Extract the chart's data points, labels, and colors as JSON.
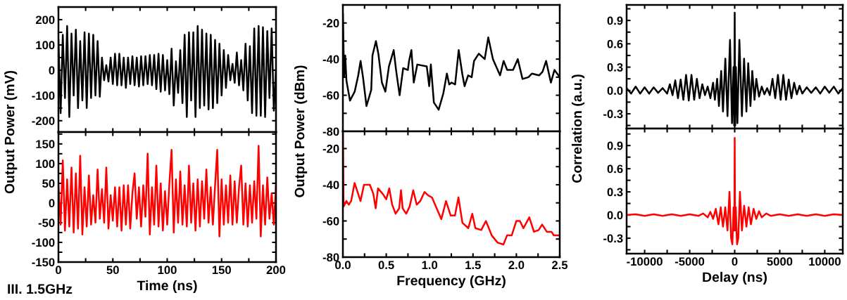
{
  "chart_data": [
    {
      "type": "line",
      "ylabel": "Output Power (mV)",
      "annotations": [
        "III. 1.5GHz"
      ],
      "tick_labels": "y",
      "xlim": [
        0,
        200
      ],
      "ylim": [
        -245,
        250
      ],
      "xticks": [
        0,
        {
          "value": 25,
          "label": null
        },
        50,
        {
          "value": 75,
          "label": null
        },
        100,
        {
          "value": 125,
          "label": null
        },
        150,
        {
          "value": 175,
          "label": null
        },
        200
      ],
      "yticks": [
        -200,
        {
          "value": -150,
          "label": null
        },
        -100,
        {
          "value": -50,
          "label": null
        },
        0,
        {
          "value": 50,
          "label": null
        },
        100,
        {
          "value": 150,
          "label": null
        },
        200
      ],
      "grid": false,
      "legend": false,
      "marker": "none",
      "line_style": "solid",
      "series": [
        {
          "color": "#000000",
          "x": [
            0,
            2,
            4,
            6,
            8,
            10,
            12,
            14,
            16,
            18,
            20,
            22,
            24,
            26,
            28,
            30,
            32,
            34,
            36,
            38,
            40,
            42,
            44,
            46,
            48,
            50,
            52,
            54,
            56,
            58,
            60,
            62,
            64,
            66,
            68,
            70,
            72,
            74,
            76,
            78,
            80,
            82,
            84,
            86,
            88,
            90,
            92,
            94,
            96,
            98,
            100,
            102,
            104,
            106,
            108,
            110,
            112,
            114,
            116,
            118,
            120,
            122,
            124,
            126,
            128,
            130,
            132,
            134,
            136,
            138,
            140,
            142,
            144,
            146,
            148,
            150,
            152,
            154,
            156,
            158,
            160,
            162,
            164,
            166,
            168,
            170,
            172,
            174,
            176,
            178,
            180,
            182,
            184,
            186,
            188,
            190,
            192,
            194,
            196,
            198,
            200
          ],
          "values": [
            120,
            -170,
            140,
            -110,
            175,
            -185,
            145,
            -100,
            160,
            -150,
            115,
            -120,
            150,
            -150,
            145,
            -110,
            140,
            -100,
            115,
            -105,
            50,
            -40,
            20,
            -45,
            50,
            -55,
            65,
            -60,
            65,
            -60,
            50,
            -70,
            50,
            -55,
            55,
            -60,
            50,
            -65,
            55,
            -60,
            55,
            -55,
            60,
            -60,
            60,
            -75,
            65,
            -85,
            60,
            -80,
            40,
            -95,
            85,
            -140,
            35,
            -90,
            80,
            -130,
            140,
            -185,
            150,
            -120,
            150,
            -185,
            175,
            -150,
            160,
            -140,
            145,
            -155,
            140,
            -150,
            120,
            -130,
            105,
            -100,
            80,
            -70,
            60,
            -40,
            25,
            -50,
            70,
            -60,
            40,
            -80,
            105,
            -120,
            95,
            -170,
            165,
            -180,
            175,
            -180,
            170,
            -185,
            155,
            -110,
            165,
            -160,
            0
          ]
        }
      ]
    },
    {
      "type": "line",
      "xlabel": "Time (ns)",
      "xlim": [
        0,
        200
      ],
      "ylim": [
        -150,
        180
      ],
      "xticks": [
        0,
        {
          "value": 25,
          "label": null
        },
        50,
        {
          "value": 75,
          "label": null
        },
        100,
        {
          "value": 125,
          "label": null
        },
        150,
        {
          "value": 175,
          "label": null
        },
        200
      ],
      "yticks": [
        -150,
        {
          "value": -125,
          "label": null
        },
        -100,
        {
          "value": -75,
          "label": null
        },
        -50,
        {
          "value": -25,
          "label": null
        },
        0,
        {
          "value": 25,
          "label": null
        },
        50,
        {
          "value": 75,
          "label": null
        },
        100,
        {
          "value": 125,
          "label": null
        },
        150,
        {
          "value": 175,
          "label": null
        }
      ],
      "grid": false,
      "legend": false,
      "marker": "none",
      "line_style": "solid",
      "series": [
        {
          "color": "#ff0000",
          "x": [
            0,
            2,
            4,
            6,
            8,
            10,
            12,
            14,
            16,
            18,
            20,
            22,
            24,
            26,
            28,
            30,
            32,
            34,
            36,
            38,
            40,
            42,
            44,
            46,
            48,
            50,
            52,
            54,
            56,
            58,
            60,
            62,
            64,
            66,
            68,
            70,
            72,
            74,
            76,
            78,
            80,
            82,
            84,
            86,
            88,
            90,
            92,
            94,
            96,
            98,
            100,
            102,
            104,
            106,
            108,
            110,
            112,
            114,
            116,
            118,
            120,
            122,
            124,
            126,
            128,
            130,
            132,
            134,
            136,
            138,
            140,
            142,
            144,
            146,
            148,
            150,
            152,
            154,
            156,
            158,
            160,
            162,
            164,
            166,
            168,
            170,
            172,
            174,
            176,
            178,
            180,
            182,
            184,
            186,
            188,
            190,
            192,
            194,
            196,
            198,
            200
          ],
          "values": [
            45,
            -55,
            108,
            -70,
            60,
            -60,
            90,
            -75,
            75,
            -65,
            120,
            -80,
            40,
            -60,
            70,
            -55,
            20,
            -50,
            85,
            -40,
            35,
            -50,
            90,
            -65,
            20,
            -45,
            40,
            -60,
            40,
            -70,
            45,
            -55,
            45,
            -65,
            25,
            75,
            -40,
            40,
            -60,
            45,
            -35,
            125,
            -80,
            40,
            -55,
            95,
            -60,
            50,
            -70,
            30,
            -55,
            50,
            135,
            -75,
            60,
            -50,
            80,
            -55,
            45,
            -60,
            95,
            -50,
            50,
            -70,
            60,
            -60,
            55,
            -40,
            85,
            -50,
            40,
            -55,
            45,
            135,
            -85,
            60,
            -55,
            45,
            -50,
            70,
            -55,
            55,
            -50,
            40,
            95,
            -55,
            50,
            -60,
            45,
            -50,
            55,
            -40,
            145,
            -85,
            45,
            -55,
            65,
            -40,
            25,
            -55,
            45
          ]
        }
      ]
    },
    {
      "type": "line",
      "ylabel": "Output Power (dBm)",
      "tick_labels": "y",
      "xlim": [
        0,
        2.5
      ],
      "ylim": [
        -80,
        -10
      ],
      "xticks": [
        0,
        {
          "value": 0.25,
          "label": null
        },
        0.5,
        {
          "value": 0.75,
          "label": null
        },
        1,
        {
          "value": 1.25,
          "label": null
        },
        1.5,
        {
          "value": 1.75,
          "label": null
        },
        2,
        {
          "value": 2.25,
          "label": null
        },
        2.5
      ],
      "yticks": [
        -80,
        {
          "value": -70,
          "label": null
        },
        -60,
        {
          "value": -50,
          "label": null
        },
        -40,
        {
          "value": -30,
          "label": null
        },
        -20
      ],
      "grid": false,
      "legend": false,
      "marker": "none",
      "line_style": "solid",
      "series": [
        {
          "color": "#000000",
          "x": [
            0,
            0.014,
            0.027,
            0.041,
            0.082,
            0.136,
            0.177,
            0.204,
            0.232,
            0.272,
            0.327,
            0.341,
            0.381,
            0.409,
            0.45,
            0.49,
            0.531,
            0.586,
            0.613,
            0.654,
            0.695,
            0.749,
            0.763,
            0.79,
            0.817,
            0.858,
            0.967,
            0.995,
            1.014,
            1.049,
            1.104,
            1.158,
            1.199,
            1.226,
            1.253,
            1.294,
            1.335,
            1.376,
            1.403,
            1.444,
            1.485,
            1.512,
            1.567,
            1.635,
            1.676,
            1.73,
            1.812,
            1.853,
            1.894,
            1.962,
            2.016,
            2.071,
            2.139,
            2.18,
            2.262,
            2.302,
            2.343,
            2.398,
            2.439,
            2.5
          ],
          "values": [
            -15,
            -50,
            -38,
            -52,
            -63,
            -58,
            -49,
            -41,
            -50,
            -66,
            -57,
            -38,
            -30,
            -37,
            -53,
            -58,
            -44,
            -35,
            -46,
            -60,
            -45,
            -46,
            -41,
            -35,
            -53,
            -43,
            -44,
            -55,
            -43,
            -64,
            -68,
            -59,
            -48,
            -54,
            -53,
            -54,
            -35,
            -48,
            -55,
            -49,
            -50,
            -41,
            -37,
            -40,
            -28,
            -40,
            -49,
            -41,
            -46,
            -46,
            -40,
            -51,
            -50,
            -48,
            -49,
            -47,
            -41,
            -53,
            -46,
            -50
          ]
        }
      ]
    },
    {
      "type": "line",
      "xlabel": "Frequency (GHz)",
      "xlim": [
        0,
        2.5
      ],
      "ylim": [
        -80,
        -10.5
      ],
      "xticks": [
        {
          "value": 0,
          "label": "0.0"
        },
        {
          "value": 0.25,
          "label": null
        },
        0.5,
        {
          "value": 0.75,
          "label": null
        },
        {
          "value": 1,
          "label": "1.0"
        },
        {
          "value": 1.25,
          "label": null
        },
        1.5,
        {
          "value": 1.75,
          "label": null
        },
        {
          "value": 2,
          "label": "2.0"
        },
        {
          "value": 2.25,
          "label": null
        },
        2.5
      ],
      "yticks": [
        -80,
        {
          "value": -70,
          "label": null
        },
        -60,
        {
          "value": -50,
          "label": null
        },
        -40,
        {
          "value": -30,
          "label": null
        },
        -20
      ],
      "grid": false,
      "legend": false,
      "marker": "none",
      "line_style": "solid",
      "series": [
        {
          "color": "#ff0000",
          "x": [
            0,
            0.008,
            0.041,
            0.068,
            0.095,
            0.135,
            0.176,
            0.203,
            0.243,
            0.284,
            0.311,
            0.351,
            0.378,
            0.405,
            0.459,
            0.5,
            0.535,
            0.568,
            0.608,
            0.649,
            0.67,
            0.689,
            0.73,
            0.77,
            0.811,
            0.851,
            0.892,
            0.941,
            0.986,
            1.027,
            1.081,
            1.135,
            1.189,
            1.243,
            1.292,
            1.332,
            1.378,
            1.446,
            1.492,
            1.527,
            1.595,
            1.649,
            1.716,
            1.784,
            1.851,
            1.892,
            1.946,
            2.0,
            2.041,
            2.081,
            2.149,
            2.203,
            2.257,
            2.297,
            2.351,
            2.405,
            2.432,
            2.486
          ],
          "values": [
            -11,
            -52,
            -49,
            -51,
            -49,
            -39,
            -45,
            -49,
            -40,
            -40,
            -40,
            -45,
            -53,
            -42,
            -45,
            -48,
            -42,
            -51,
            -56,
            -53,
            -43,
            -53,
            -56,
            -52,
            -43,
            -51,
            -49,
            -44,
            -46,
            -47,
            -53,
            -59,
            -49,
            -57,
            -57,
            -47,
            -61,
            -64,
            -56,
            -64,
            -65,
            -60,
            -68,
            -72,
            -73,
            -68,
            -68,
            -60,
            -60,
            -64,
            -58,
            -66,
            -65,
            -62,
            -66,
            -66,
            -68,
            -68
          ]
        }
      ]
    },
    {
      "type": "line",
      "ylabel": "Correlation (a.u.)",
      "tick_labels": "y",
      "xlim": [
        -12000,
        12000
      ],
      "ylim": [
        -0.49,
        1.1
      ],
      "xticks": [
        -10000,
        {
          "value": -7500,
          "label": null
        },
        -5000,
        {
          "value": -2500,
          "label": null
        },
        0,
        {
          "value": 2500,
          "label": null
        },
        5000,
        {
          "value": 7500,
          "label": null
        },
        10000
      ],
      "yticks": [
        {
          "value": -0.45,
          "label": null
        },
        -0.3,
        {
          "value": -0.15,
          "label": null
        },
        {
          "value": 0,
          "label": "0.0"
        },
        {
          "value": 0.15,
          "label": null
        },
        0.3,
        {
          "value": 0.45,
          "label": null
        },
        0.6,
        {
          "value": 0.75,
          "label": null
        },
        0.9,
        {
          "value": 1.05,
          "label": null
        }
      ],
      "grid": false,
      "legend": false,
      "marker": "none",
      "line_style": "solid",
      "series": [
        {
          "color": "#000000",
          "x": [
            -12000,
            -11500,
            -11000,
            -10500,
            -10000,
            -9500,
            -9000,
            -8500,
            -8000,
            -7500,
            -7200,
            -6900,
            -6600,
            -6300,
            -6000,
            -5700,
            -5400,
            -5100,
            -4800,
            -4500,
            -4200,
            -3900,
            -3600,
            -3300,
            -3000,
            -2700,
            -2400,
            -2200,
            -1950,
            -1750,
            -1500,
            -1300,
            -1040,
            -800,
            -520,
            -300,
            -130,
            -60,
            0,
            60,
            130,
            300,
            520,
            800,
            1040,
            1300,
            1500,
            1750,
            1950,
            2200,
            2400,
            2700,
            3000,
            3300,
            3600,
            3900,
            4200,
            4500,
            4800,
            5100,
            5400,
            5700,
            6000,
            6300,
            6600,
            6900,
            7200,
            7500,
            8000,
            8500,
            9000,
            9500,
            10000,
            10500,
            11000,
            11500,
            12000
          ],
          "values": [
            0.03,
            -0.04,
            0.05,
            -0.04,
            0.04,
            -0.04,
            0.04,
            -0.03,
            0.03,
            -0.04,
            0.08,
            -0.06,
            0.13,
            -0.1,
            0.14,
            -0.12,
            0.2,
            -0.13,
            0.2,
            -0.12,
            0.15,
            -0.1,
            0.08,
            -0.06,
            0.05,
            -0.1,
            0.1,
            -0.12,
            0.15,
            -0.2,
            0.25,
            -0.27,
            0.41,
            -0.33,
            0.65,
            -0.42,
            0.3,
            -0.45,
            1.0,
            -0.45,
            0.3,
            -0.42,
            0.65,
            -0.33,
            0.41,
            -0.27,
            0.35,
            -0.2,
            0.25,
            -0.12,
            0.15,
            -0.08,
            0.05,
            -0.05,
            0.03,
            -0.06,
            0.15,
            -0.1,
            0.2,
            -0.12,
            0.2,
            -0.12,
            0.14,
            -0.1,
            0.1,
            -0.05,
            0.06,
            -0.04,
            0.04,
            -0.03,
            0.04,
            -0.04,
            0.05,
            -0.03,
            0.05,
            -0.04,
            0.03
          ]
        }
      ]
    },
    {
      "type": "line",
      "xlabel": "Delay (ns)",
      "xlim": [
        -12000,
        12000
      ],
      "ylim": [
        -0.5,
        1.12
      ],
      "xticks": [
        -10000,
        {
          "value": -7500,
          "label": null
        },
        -5000,
        {
          "value": -2500,
          "label": null
        },
        0,
        {
          "value": 2500,
          "label": null
        },
        5000,
        {
          "value": 7500,
          "label": null
        },
        10000
      ],
      "yticks": [
        {
          "value": -0.45,
          "label": null
        },
        -0.3,
        {
          "value": -0.15,
          "label": null
        },
        {
          "value": 0,
          "label": "0.0"
        },
        {
          "value": 0.15,
          "label": null
        },
        0.3,
        {
          "value": 0.45,
          "label": null
        },
        0.6,
        {
          "value": 0.75,
          "label": null
        },
        0.9,
        {
          "value": 1.05,
          "label": null
        }
      ],
      "grid": false,
      "legend": false,
      "marker": "none",
      "line_style": "solid",
      "series": [
        {
          "color": "#ff0000",
          "x": [
            -12000,
            -11000,
            -10000,
            -9000,
            -8000,
            -7000,
            -6000,
            -5000,
            -4000,
            -3500,
            -3000,
            -2700,
            -2400,
            -2100,
            -1800,
            -1550,
            -1300,
            -1050,
            -800,
            -580,
            -400,
            -260,
            -120,
            -40,
            0,
            40,
            120,
            260,
            400,
            580,
            800,
            1050,
            1300,
            1550,
            1800,
            2100,
            2400,
            2700,
            3000,
            3500,
            4000,
            5000,
            6000,
            7000,
            8000,
            9000,
            10000,
            11000,
            12000
          ],
          "values": [
            0.0,
            0.01,
            -0.01,
            0.01,
            -0.01,
            0.01,
            -0.01,
            0.01,
            -0.01,
            0.02,
            -0.03,
            0.04,
            -0.05,
            0.08,
            -0.12,
            0.1,
            -0.15,
            0.1,
            -0.2,
            0.3,
            -0.3,
            -0.38,
            0.1,
            -0.2,
            1.0,
            -0.2,
            0.1,
            -0.38,
            -0.3,
            0.3,
            -0.2,
            0.12,
            -0.15,
            0.1,
            -0.12,
            0.08,
            -0.05,
            0.05,
            -0.03,
            0.02,
            -0.01,
            0.01,
            -0.01,
            0.01,
            -0.01,
            0.01,
            -0.01,
            0.01,
            0.0
          ]
        }
      ]
    }
  ]
}
